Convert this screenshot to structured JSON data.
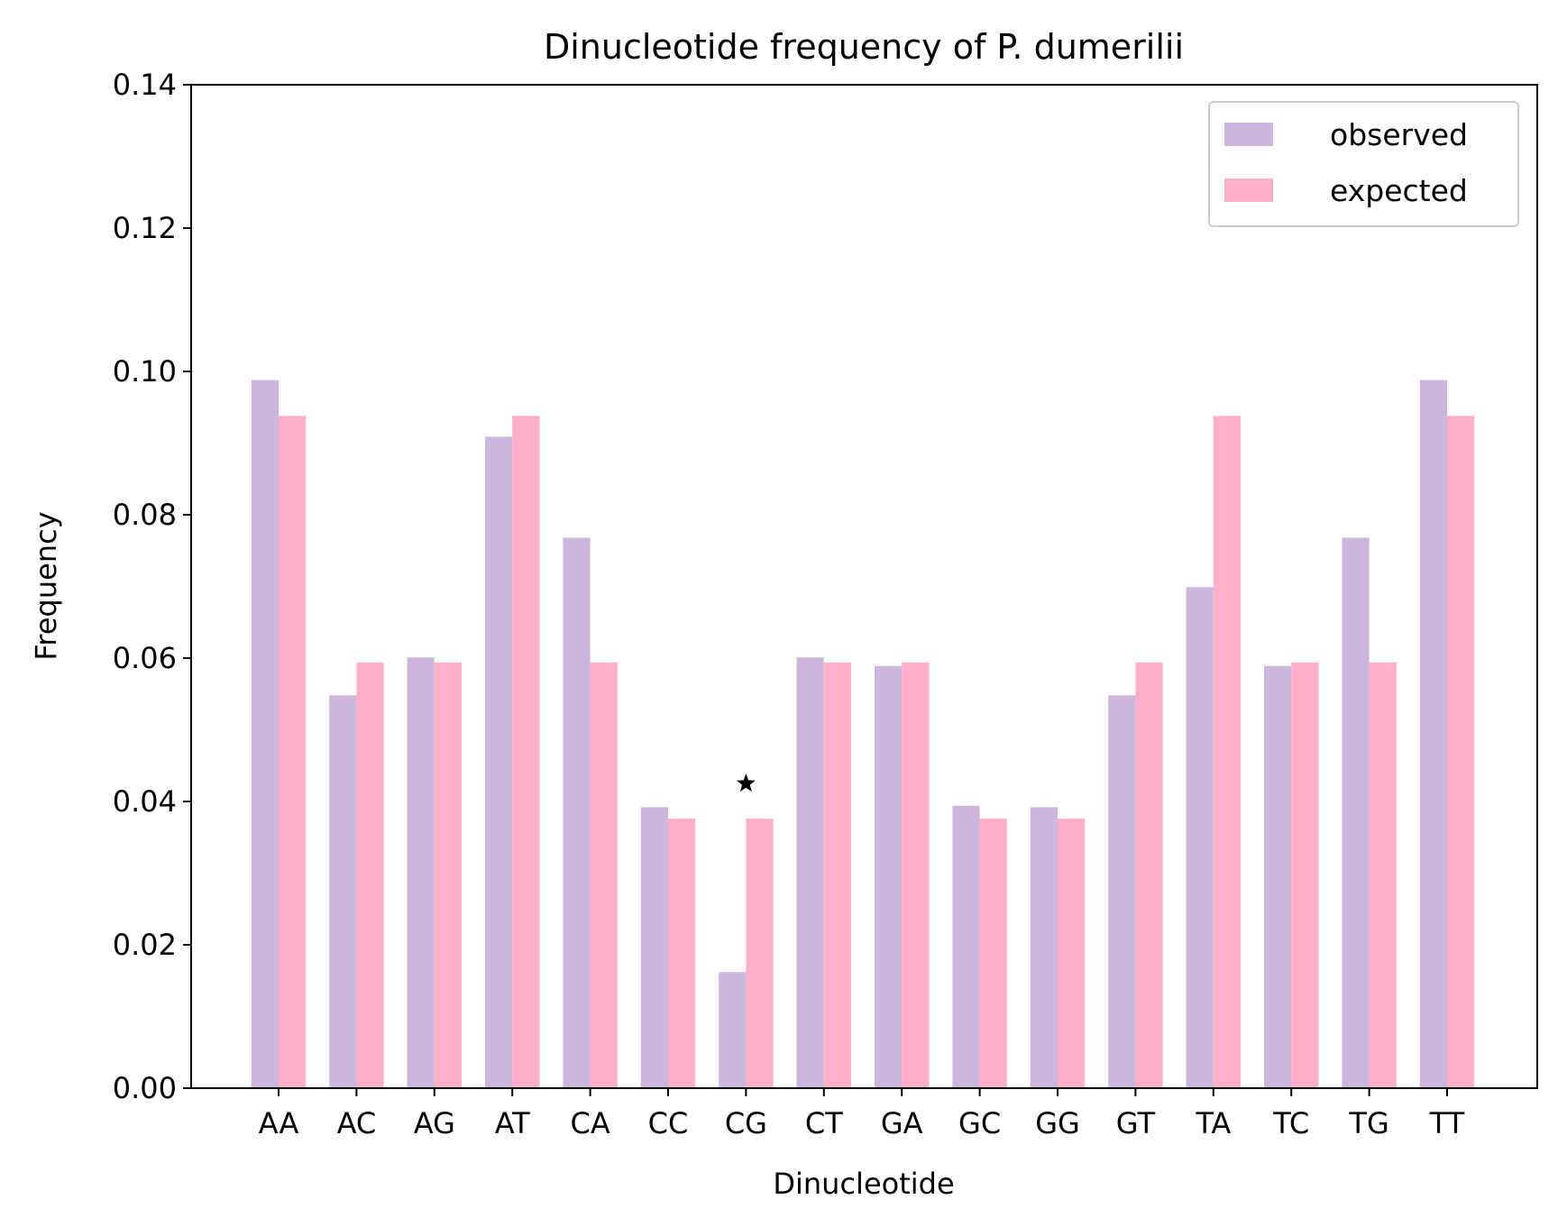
{
  "chart_data": {
    "type": "bar",
    "title": "Dinucleotide frequency of P. dumerilii",
    "xlabel": "Dinucleotide",
    "ylabel": "Frequency",
    "ylim": [
      0,
      0.14
    ],
    "yticks": [
      "0.00",
      "0.02",
      "0.04",
      "0.06",
      "0.08",
      "0.10",
      "0.12",
      "0.14"
    ],
    "grid": false,
    "legend_position": "top-right",
    "categories": [
      "AA",
      "AC",
      "AG",
      "AT",
      "CA",
      "CC",
      "CG",
      "CT",
      "GA",
      "GC",
      "GG",
      "GT",
      "TA",
      "TC",
      "TG",
      "TT"
    ],
    "series": [
      {
        "name": "observed",
        "color": "#cdb6db",
        "values": [
          0.0988,
          0.0548,
          0.0601,
          0.0909,
          0.0768,
          0.0392,
          0.0162,
          0.0601,
          0.0589,
          0.0394,
          0.0392,
          0.0548,
          0.0699,
          0.0589,
          0.0768,
          0.0988
        ]
      },
      {
        "name": "expected",
        "color": "#ffafca",
        "values": [
          0.0938,
          0.0594,
          0.0594,
          0.0938,
          0.0594,
          0.0376,
          0.0376,
          0.0594,
          0.0594,
          0.0376,
          0.0376,
          0.0594,
          0.0938,
          0.0594,
          0.0594,
          0.0938
        ]
      }
    ],
    "annotations": [
      {
        "category": "CG",
        "y": 0.0425,
        "marker": "star",
        "color": "#000000"
      }
    ]
  }
}
